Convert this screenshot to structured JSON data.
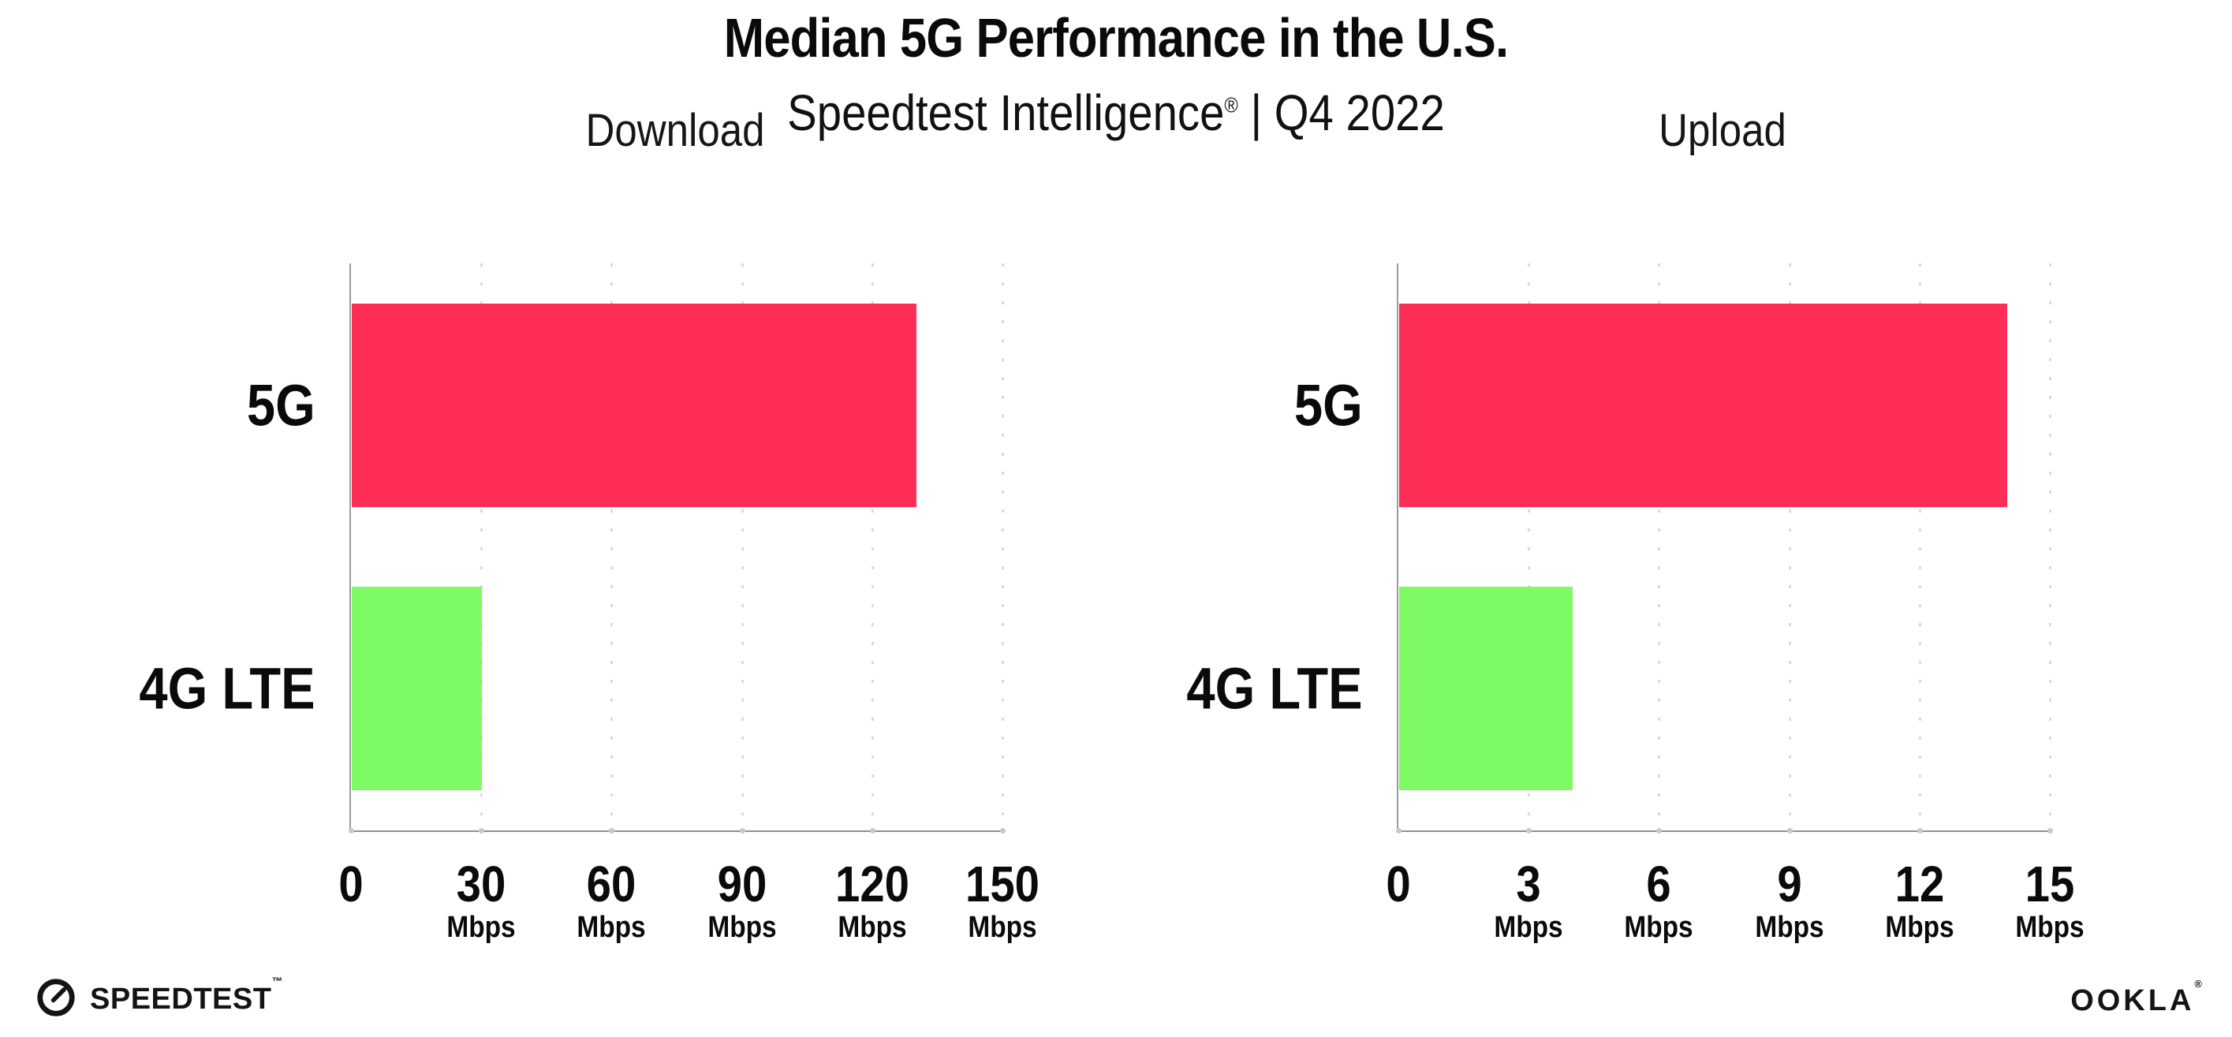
{
  "header": {
    "title": "Median 5G Performance in the U.S.",
    "subtitle_brand": "Speedtest Intelligence",
    "subtitle_reg": "®",
    "subtitle_rest": " | Q4 2022"
  },
  "footer": {
    "speedtest_logo_text": "SPEEDTEST",
    "speedtest_trademark": "™",
    "ookla_logo_text": "OOKLA",
    "ookla_reg": "®"
  },
  "colors": {
    "bar_5g": "#ff2e56",
    "bar_4g_lte": "#7efa64",
    "axis": "#9b9b9b",
    "grid_dot": "#d9d9e3",
    "text": "#0a0a0a"
  },
  "chart_data": [
    {
      "type": "bar",
      "orientation": "horizontal",
      "title": "Download",
      "categories": [
        "5G",
        "4G LTE"
      ],
      "values": [
        130,
        30
      ],
      "unit": "Mbps",
      "xlim": [
        0,
        150
      ],
      "ticks": [
        0,
        30,
        60,
        90,
        120,
        150
      ],
      "tick_unit": "Mbps",
      "grid": "dotted-vertical",
      "legend": "none",
      "bar_colors": [
        "#ff2e56",
        "#7efa64"
      ]
    },
    {
      "type": "bar",
      "orientation": "horizontal",
      "title": "Upload",
      "categories": [
        "5G",
        "4G LTE"
      ],
      "values": [
        14,
        4
      ],
      "unit": "Mbps",
      "xlim": [
        0,
        15
      ],
      "ticks": [
        0,
        3,
        6,
        9,
        12,
        15
      ],
      "tick_unit": "Mbps",
      "grid": "dotted-vertical",
      "legend": "none",
      "bar_colors": [
        "#ff2e56",
        "#7efa64"
      ]
    }
  ]
}
